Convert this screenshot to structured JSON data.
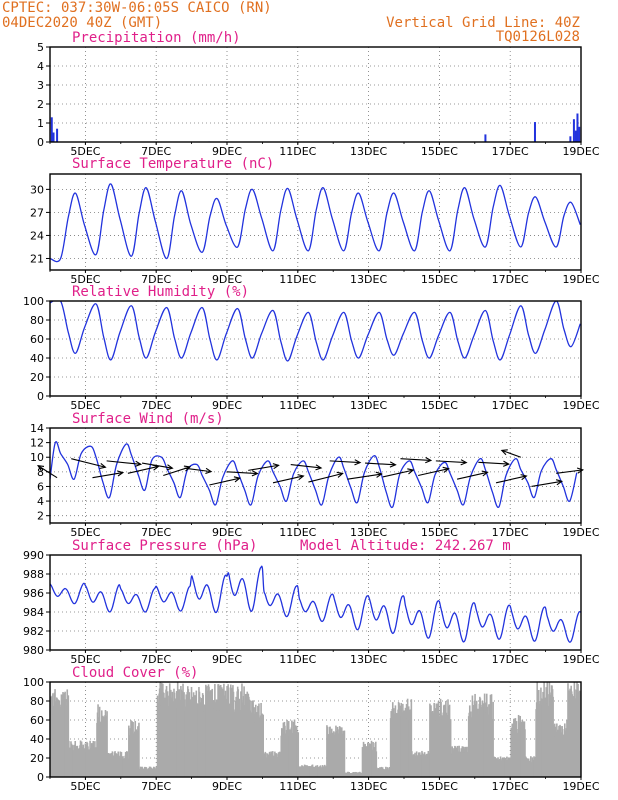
{
  "header": {
    "station_line": "CPTEC:  037:30W-06:05S  CAICO (RN)",
    "date_line": "04DEC2020 40Z (GMT)",
    "grid_line": "Vertical Grid Line: 40Z",
    "code": "TQ0126L028"
  },
  "colors": {
    "header": "#e07020",
    "panel_title": "#e0208a",
    "series": "#2233dd",
    "cloud": "#aaaaaa",
    "arrow": "#000000"
  },
  "chart_data": [
    {
      "id": "precip",
      "type": "bar",
      "title": "Precipitation (mm/h)",
      "x_ticks": [
        "5DEC",
        "7DEC",
        "9DEC",
        "11DEC",
        "13DEC",
        "15DEC",
        "17DEC",
        "19DEC"
      ],
      "xlim": [
        4.0,
        19.0
      ],
      "ylim": [
        0,
        5
      ],
      "y_ticks": [
        0,
        1,
        2,
        3,
        4,
        5
      ],
      "x": [
        4.05,
        4.1,
        4.2,
        8.5,
        12.5,
        16.3,
        17.7,
        18.7,
        18.8,
        18.85,
        18.9,
        18.95
      ],
      "values": [
        1.3,
        0.5,
        0.7,
        0.03,
        0.02,
        0.4,
        1.05,
        0.3,
        1.2,
        0.6,
        1.5,
        0.8
      ]
    },
    {
      "id": "temp",
      "type": "line",
      "title": "Surface Temperature (nC)",
      "x_ticks": [
        "5DEC",
        "7DEC",
        "9DEC",
        "11DEC",
        "13DEC",
        "15DEC",
        "17DEC",
        "19DEC"
      ],
      "xlim": [
        4.0,
        19.0
      ],
      "ylim": [
        19.5,
        32
      ],
      "y_ticks": [
        21,
        24,
        27,
        30
      ],
      "min_day": [
        21.0,
        21.5,
        21.3,
        21.0,
        21.8,
        22.5,
        22.0,
        22.0,
        22.0,
        22.0,
        22.0,
        22.0,
        22.5,
        22.5,
        22.5
      ],
      "max_day": [
        29.5,
        30.7,
        30.2,
        29.8,
        28.8,
        30.0,
        30.1,
        30.2,
        29.5,
        29.5,
        29.8,
        30.2,
        30.5,
        29.0,
        28.3
      ],
      "start_value": 21.0
    },
    {
      "id": "rh",
      "type": "line",
      "title": "Relative Humidity (%)",
      "x_ticks": [
        "5DEC",
        "7DEC",
        "9DEC",
        "11DEC",
        "13DEC",
        "15DEC",
        "17DEC",
        "19DEC"
      ],
      "xlim": [
        4.0,
        19.0
      ],
      "ylim": [
        0,
        100
      ],
      "y_ticks": [
        0,
        20,
        40,
        60,
        80,
        100
      ],
      "max_day": [
        100,
        97,
        95,
        93,
        93,
        92,
        90,
        88,
        88,
        88,
        88,
        88,
        90,
        95,
        100
      ],
      "min_day": [
        45,
        38,
        40,
        40,
        38,
        40,
        37,
        38,
        40,
        43,
        40,
        40,
        38,
        45,
        52
      ],
      "start_value": 98
    },
    {
      "id": "wind",
      "type": "line",
      "title": "Surface Wind (m/s)",
      "x_ticks": [
        "5DEC",
        "7DEC",
        "9DEC",
        "11DEC",
        "13DEC",
        "15DEC",
        "17DEC",
        "19DEC"
      ],
      "xlim": [
        4.0,
        19.0
      ],
      "ylim": [
        1,
        14
      ],
      "y_ticks": [
        2,
        4,
        6,
        8,
        10,
        12,
        14
      ],
      "max_day": [
        12.0,
        11.5,
        11.8,
        10.0,
        9.0,
        9.5,
        9.5,
        9.5,
        10.0,
        10.2,
        9.5,
        9.3,
        9.8,
        9.8,
        9.8
      ],
      "min_day": [
        7.0,
        4.5,
        5.5,
        4.5,
        3.5,
        3.5,
        4.0,
        3.5,
        3.8,
        3.2,
        3.8,
        3.5,
        3.2,
        4.5,
        4.0
      ],
      "start_value": 7.0,
      "vectors": [
        {
          "x": 4.2,
          "y": 7.2,
          "u": -0.5,
          "v": 0.7
        },
        {
          "x": 4.6,
          "y": 9.8,
          "u": 0.9,
          "v": -0.5
        },
        {
          "x": 5.2,
          "y": 7.2,
          "u": 0.8,
          "v": 0.3
        },
        {
          "x": 5.6,
          "y": 9.5,
          "u": 0.9,
          "v": -0.2
        },
        {
          "x": 6.2,
          "y": 7.8,
          "u": 0.8,
          "v": 0.4
        },
        {
          "x": 6.6,
          "y": 9.2,
          "u": 0.8,
          "v": -0.3
        },
        {
          "x": 7.2,
          "y": 7.5,
          "u": 0.7,
          "v": 0.5
        },
        {
          "x": 7.8,
          "y": 8.5,
          "u": 0.7,
          "v": -0.2
        },
        {
          "x": 8.5,
          "y": 6.2,
          "u": 0.8,
          "v": 0.4
        },
        {
          "x": 9.0,
          "y": 8.0,
          "u": 0.8,
          "v": -0.1
        },
        {
          "x": 9.6,
          "y": 8.2,
          "u": 0.8,
          "v": 0.3
        },
        {
          "x": 10.3,
          "y": 6.5,
          "u": 0.8,
          "v": 0.4
        },
        {
          "x": 10.8,
          "y": 9.0,
          "u": 0.8,
          "v": -0.2
        },
        {
          "x": 11.3,
          "y": 6.6,
          "u": 0.9,
          "v": 0.5
        },
        {
          "x": 11.9,
          "y": 9.5,
          "u": 0.8,
          "v": -0.1
        },
        {
          "x": 12.4,
          "y": 7.0,
          "u": 0.9,
          "v": 0.3
        },
        {
          "x": 12.9,
          "y": 9.2,
          "u": 0.8,
          "v": -0.1
        },
        {
          "x": 13.4,
          "y": 7.3,
          "u": 0.8,
          "v": 0.4
        },
        {
          "x": 13.9,
          "y": 9.8,
          "u": 0.8,
          "v": -0.1
        },
        {
          "x": 14.4,
          "y": 7.5,
          "u": 0.8,
          "v": 0.4
        },
        {
          "x": 14.9,
          "y": 9.5,
          "u": 0.8,
          "v": -0.1
        },
        {
          "x": 15.5,
          "y": 7.0,
          "u": 0.8,
          "v": 0.4
        },
        {
          "x": 16.1,
          "y": 9.3,
          "u": 0.8,
          "v": -0.1
        },
        {
          "x": 16.6,
          "y": 6.5,
          "u": 0.8,
          "v": 0.4
        },
        {
          "x": 17.3,
          "y": 10.0,
          "u": -0.5,
          "v": 0.4
        },
        {
          "x": 17.6,
          "y": 6.0,
          "u": 0.8,
          "v": 0.3
        },
        {
          "x": 18.3,
          "y": 7.8,
          "u": 0.7,
          "v": 0.2
        }
      ]
    },
    {
      "id": "pressure",
      "type": "line",
      "title": "Surface Pressure (hPa)",
      "annotation": "Model Altitude: 242.267 m",
      "x_ticks": [
        "5DEC",
        "7DEC",
        "9DEC",
        "11DEC",
        "13DEC",
        "15DEC",
        "17DEC",
        "19DEC"
      ],
      "xlim": [
        4.0,
        19.0
      ],
      "ylim": [
        980,
        990
      ],
      "y_ticks": [
        980,
        982,
        984,
        986,
        988,
        990
      ],
      "base": [
        986.0,
        985.5,
        985.3,
        985.5,
        986.0,
        986.5,
        985.2,
        984.5,
        984.0,
        983.8,
        983.3,
        983.0,
        983.0,
        982.8,
        982.5
      ],
      "amp": [
        1.2,
        1.6,
        1.4,
        1.5,
        2.2,
        2.6,
        1.8,
        1.6,
        2.0,
        2.2,
        2.2,
        2.3,
        2.0,
        2.0,
        1.8
      ]
    },
    {
      "id": "cloud",
      "type": "bar",
      "title": "Cloud Cover (%)",
      "x_ticks": [
        "5DEC",
        "7DEC",
        "9DEC",
        "11DEC",
        "13DEC",
        "15DEC",
        "17DEC",
        "19DEC"
      ],
      "xlim": [
        4.0,
        19.0
      ],
      "ylim": [
        0,
        100
      ],
      "y_ticks": [
        0,
        20,
        40,
        60,
        80,
        100
      ],
      "segments": [
        {
          "from": 4.0,
          "to": 4.5,
          "level": 85
        },
        {
          "from": 4.5,
          "to": 5.3,
          "level": 35
        },
        {
          "from": 5.3,
          "to": 5.6,
          "level": 70
        },
        {
          "from": 5.6,
          "to": 6.2,
          "level": 25
        },
        {
          "from": 6.2,
          "to": 6.5,
          "level": 55
        },
        {
          "from": 6.5,
          "to": 7.0,
          "level": 10
        },
        {
          "from": 7.0,
          "to": 7.6,
          "level": 92
        },
        {
          "from": 7.6,
          "to": 9.6,
          "level": 90
        },
        {
          "from": 9.6,
          "to": 10.0,
          "level": 75
        },
        {
          "from": 10.0,
          "to": 10.5,
          "level": 25
        },
        {
          "from": 10.5,
          "to": 11.0,
          "level": 55
        },
        {
          "from": 11.0,
          "to": 11.8,
          "level": 12
        },
        {
          "from": 11.8,
          "to": 12.3,
          "level": 50
        },
        {
          "from": 12.3,
          "to": 12.8,
          "level": 5
        },
        {
          "from": 12.8,
          "to": 13.2,
          "level": 35
        },
        {
          "from": 13.2,
          "to": 13.6,
          "level": 10
        },
        {
          "from": 13.6,
          "to": 14.2,
          "level": 75
        },
        {
          "from": 14.2,
          "to": 14.7,
          "level": 25
        },
        {
          "from": 14.7,
          "to": 15.3,
          "level": 75
        },
        {
          "from": 15.3,
          "to": 15.8,
          "level": 30
        },
        {
          "from": 15.8,
          "to": 16.5,
          "level": 80
        },
        {
          "from": 16.5,
          "to": 17.0,
          "level": 20
        },
        {
          "from": 17.0,
          "to": 17.4,
          "level": 60
        },
        {
          "from": 17.4,
          "to": 17.7,
          "level": 20
        },
        {
          "from": 17.7,
          "to": 18.2,
          "level": 95
        },
        {
          "from": 18.2,
          "to": 18.6,
          "level": 55
        },
        {
          "from": 18.6,
          "to": 19.0,
          "level": 95
        }
      ]
    }
  ]
}
